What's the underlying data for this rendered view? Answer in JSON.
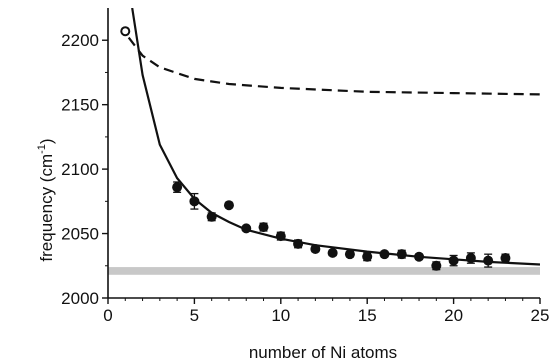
{
  "chart_data": {
    "type": "scatter",
    "title": "",
    "xlabel": "number of Ni atoms",
    "ylabel": "frequency (cm-1)",
    "xlim": [
      0,
      25
    ],
    "ylim": [
      2000,
      2225
    ],
    "x_ticks": [
      "0",
      "5",
      "10",
      "15",
      "20",
      "25"
    ],
    "y_ticks": [
      "2000",
      "2050",
      "2100",
      "2150",
      "2200"
    ],
    "grid": false,
    "legend": "none",
    "series": [
      {
        "kind": "points",
        "marker": "filled-circle",
        "x": [
          4,
          5,
          6,
          7,
          8,
          9,
          10,
          11,
          12,
          13,
          14,
          15,
          16,
          17,
          18,
          19,
          20,
          21,
          22,
          23
        ],
        "y": [
          2086,
          2075,
          2063,
          2072,
          2054,
          2055,
          2048,
          2042,
          2038,
          2035,
          2034,
          2032,
          2034,
          2034,
          2032,
          2025,
          2029,
          2031,
          2029,
          2031
        ],
        "err": [
          4,
          6,
          3,
          0,
          0,
          3,
          3,
          3,
          2,
          2,
          2,
          3,
          2,
          3,
          2,
          3,
          4,
          4,
          5,
          3
        ]
      },
      {
        "kind": "points",
        "marker": "open-circle",
        "x": [
          1
        ],
        "y": [
          2207
        ]
      },
      {
        "kind": "curve",
        "style": "solid",
        "x": [
          1.4,
          2,
          3,
          4,
          5,
          6,
          7,
          8,
          10,
          12,
          15,
          18,
          20,
          22,
          25
        ],
        "y": [
          2225,
          2173,
          2119,
          2093,
          2077,
          2066,
          2059,
          2053,
          2046,
          2041,
          2036,
          2032,
          2030,
          2028,
          2026
        ]
      },
      {
        "kind": "curve",
        "style": "dashed",
        "x": [
          1.2,
          2,
          3,
          5,
          7,
          10,
          15,
          20,
          25
        ],
        "y": [
          2202,
          2188,
          2179,
          2170,
          2166,
          2163,
          2160,
          2159,
          2158
        ]
      },
      {
        "kind": "band",
        "color": "#c8c8c8",
        "x": [
          0,
          25
        ],
        "y": [
          2018,
          2024
        ]
      }
    ]
  }
}
